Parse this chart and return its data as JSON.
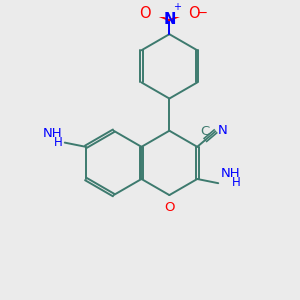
{
  "background_color": "#ebebeb",
  "bond_color": "#3d7a6e",
  "N_color": "#0000ff",
  "O_color": "#ff0000",
  "figsize": [
    3.0,
    3.0
  ],
  "dpi": 100,
  "xlim": [
    0,
    10
  ],
  "ylim": [
    0,
    10
  ]
}
